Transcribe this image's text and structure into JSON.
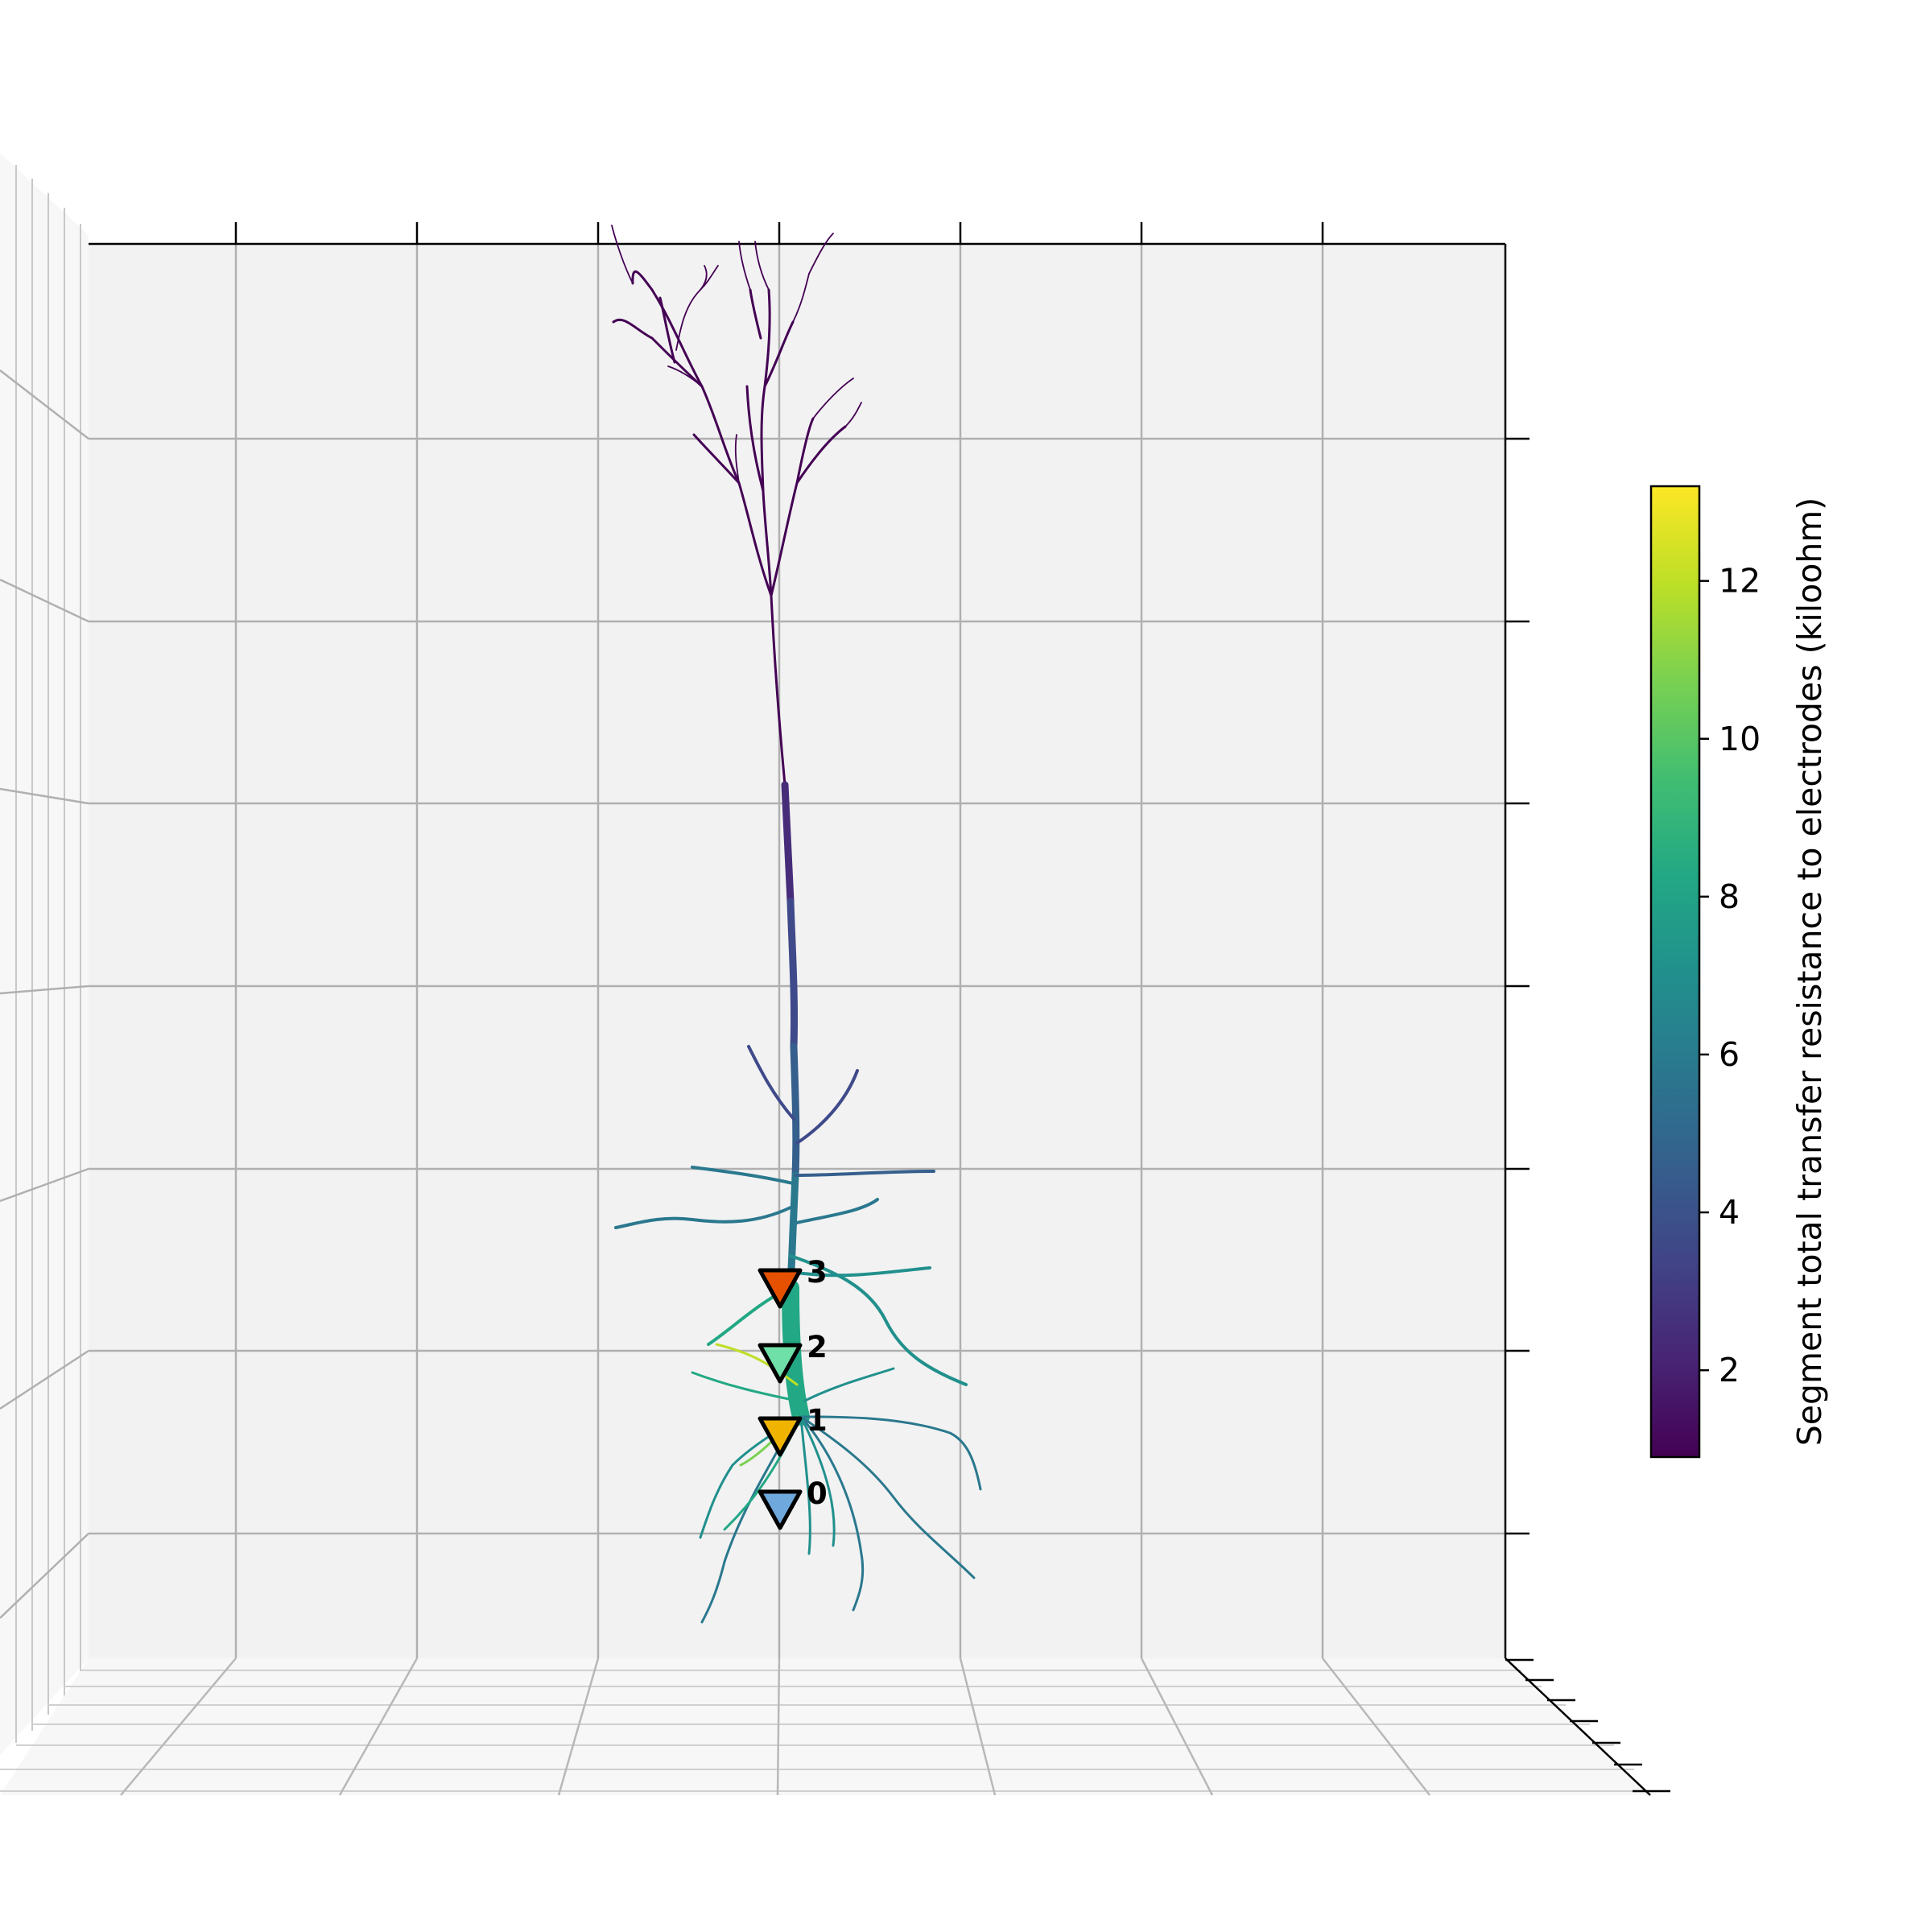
{
  "chart_data": {
    "type": "scatter",
    "title": "",
    "plot": "3D neuron morphology colored by segment total transfer resistance to electrodes",
    "axis_ticks_labeled": false,
    "grid": true,
    "colormap": "viridis",
    "colorbar": {
      "label": "Segment total transfer resistance to electrodes (kiloohm)",
      "range": [
        0.9,
        13.2
      ],
      "ticks": [
        2,
        4,
        6,
        8,
        10,
        12
      ],
      "tick_labels": [
        "2",
        "4",
        "6",
        "8",
        "10",
        "12"
      ],
      "stops": [
        "#440154",
        "#482475",
        "#414487",
        "#355f8d",
        "#2a788e",
        "#21908d",
        "#22a884",
        "#42be71",
        "#7ad151",
        "#bddf26",
        "#fde725"
      ]
    },
    "electrodes": [
      {
        "label": "0",
        "color": "#6fa8dc"
      },
      {
        "label": "1",
        "color": "#f0b400"
      },
      {
        "label": "2",
        "color": "#6fe0a8"
      },
      {
        "label": "3",
        "color": "#e65100"
      }
    ]
  }
}
